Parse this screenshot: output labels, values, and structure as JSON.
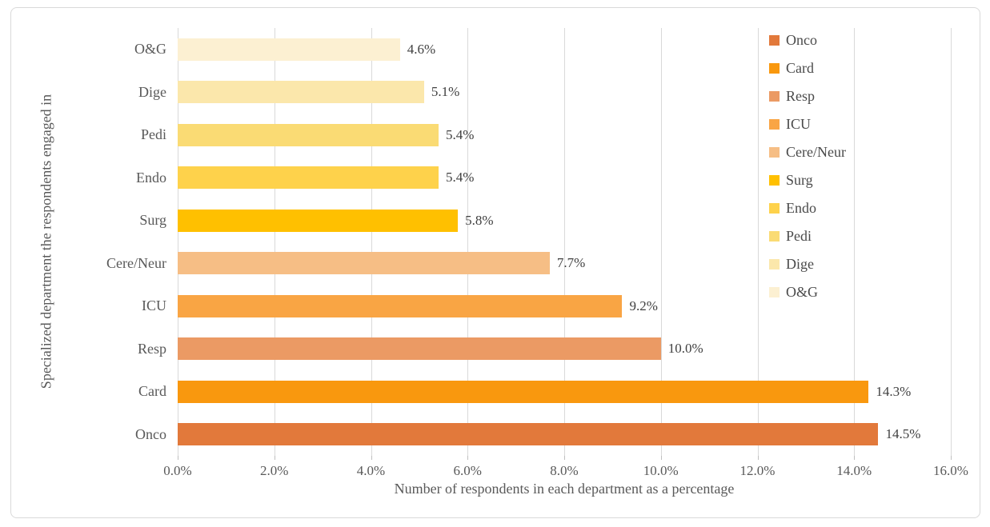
{
  "figure": {
    "x_title": "Number of respondents in each department as a percentage",
    "y_title": "Specialized department the respondents engaged in"
  },
  "chart_data": {
    "type": "bar",
    "orientation": "horizontal",
    "title": "",
    "xlabel": "Number of respondents in each department as a percentage",
    "ylabel": "Specialized department the respondents engaged in",
    "xlim": [
      0,
      16
    ],
    "x_ticks": [
      "0.0%",
      "2.0%",
      "4.0%",
      "6.0%",
      "8.0%",
      "10.0%",
      "12.0%",
      "14.0%",
      "16.0%"
    ],
    "grid": true,
    "grid_color": "#D9D9D9",
    "text_color": "#595959",
    "legend_position": "top-right-overlay",
    "categories_top_to_bottom": [
      "O&G",
      "Dige",
      "Pedi",
      "Endo",
      "Surg",
      "Cere/Neur",
      "ICU",
      "Resp",
      "Card",
      "Onco"
    ],
    "rows": [
      {
        "label": "O&G",
        "value": 4.6,
        "value_label": "4.6%",
        "color": "#FCF0D2"
      },
      {
        "label": "Dige",
        "value": 5.1,
        "value_label": "5.1%",
        "color": "#FBE7AB"
      },
      {
        "label": "Pedi",
        "value": 5.4,
        "value_label": "5.4%",
        "color": "#FADB74"
      },
      {
        "label": "Endo",
        "value": 5.4,
        "value_label": "5.4%",
        "color": "#FED24B"
      },
      {
        "label": "Surg",
        "value": 5.8,
        "value_label": "5.8%",
        "color": "#FFC000"
      },
      {
        "label": "Cere/Neur",
        "value": 7.7,
        "value_label": "7.7%",
        "color": "#F6BE85"
      },
      {
        "label": "ICU",
        "value": 9.2,
        "value_label": "9.2%",
        "color": "#F9A544"
      },
      {
        "label": "Resp",
        "value": 10.0,
        "value_label": "10.0%",
        "color": "#EB9A64"
      },
      {
        "label": "Card",
        "value": 14.3,
        "value_label": "14.3%",
        "color": "#F9980E"
      },
      {
        "label": "Onco",
        "value": 14.5,
        "value_label": "14.5%",
        "color": "#E2793B"
      }
    ],
    "legend": [
      {
        "label": "Onco",
        "color": "#E2793B"
      },
      {
        "label": "Card",
        "color": "#F9980E"
      },
      {
        "label": "Resp",
        "color": "#EB9A64"
      },
      {
        "label": "ICU",
        "color": "#F9A544"
      },
      {
        "label": "Cere/Neur",
        "color": "#F6BE85"
      },
      {
        "label": "Surg",
        "color": "#FFC000"
      },
      {
        "label": "Endo",
        "color": "#FED24B"
      },
      {
        "label": "Pedi",
        "color": "#FADB74"
      },
      {
        "label": "Dige",
        "color": "#FBE7AB"
      },
      {
        "label": "O&G",
        "color": "#FCF0D2"
      }
    ]
  }
}
